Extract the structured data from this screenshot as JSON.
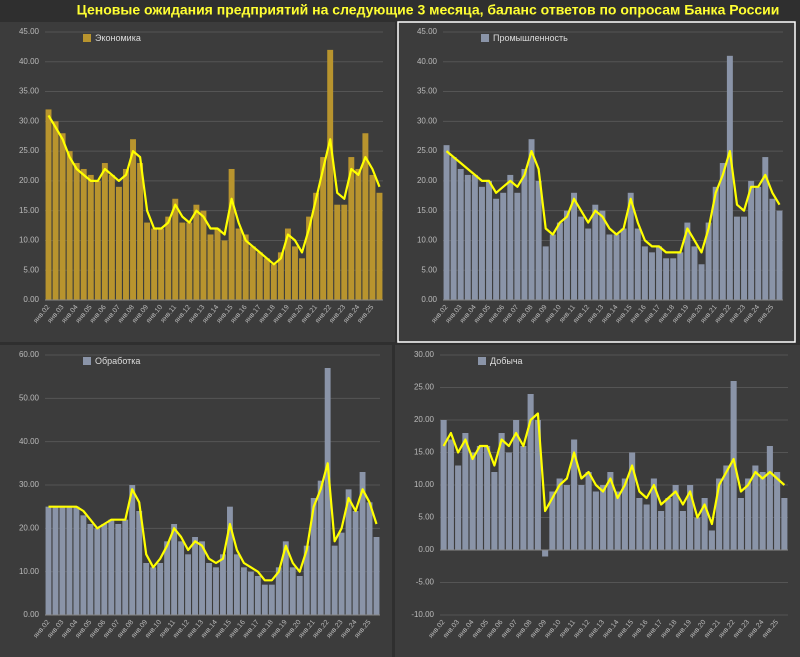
{
  "title": "Ценовые ожидания предприятий на следующие 3 месяца, баланс ответов по опросам Банка России",
  "chart_data": [
    {
      "type": "bar",
      "categories": [
        "янв.02",
        null,
        "янв.03",
        null,
        "янв.04",
        null,
        "янв.05",
        null,
        "янв.06",
        null,
        "янв.07",
        null,
        "янв.08",
        null,
        "янв.09",
        null,
        "янв.10",
        null,
        "янв.11",
        null,
        "янв.12",
        null,
        "янв.13",
        null,
        "янв.14",
        null,
        "янв.15",
        null,
        "янв.16",
        null,
        "янв.17",
        null,
        "янв.18",
        null,
        "янв.19",
        null,
        "янв.20",
        null,
        "янв.21",
        null,
        "янв.22",
        null,
        "янв.23",
        null,
        "янв.24",
        null,
        "янв.25",
        null
      ],
      "series": [
        {
          "name": "Экономика",
          "color": "#b8942e",
          "values": [
            32,
            30,
            28,
            25,
            23,
            22,
            21,
            20,
            23,
            21,
            19,
            22,
            27,
            23,
            13,
            12,
            12,
            14,
            17,
            13,
            13,
            16,
            15,
            11,
            12,
            10,
            22,
            12,
            11,
            9,
            8,
            7,
            6,
            8,
            12,
            9,
            7,
            14,
            18,
            24,
            42,
            16,
            16,
            24,
            22,
            28,
            21,
            18
          ]
        },
        {
          "type": "line",
          "color": "#ffff00",
          "values": [
            31,
            29,
            27,
            24,
            22,
            21,
            20,
            20,
            22,
            21,
            20,
            21,
            25,
            24,
            15,
            12,
            12,
            13,
            16,
            14,
            13,
            15,
            14,
            12,
            12,
            11,
            17,
            13,
            10,
            9,
            8,
            7,
            6,
            7,
            11,
            10,
            8,
            12,
            17,
            22,
            27,
            18,
            17,
            22,
            21,
            24,
            22,
            19
          ]
        }
      ],
      "ylim": [
        0,
        45
      ],
      "yticks": [
        {
          "value": 0,
          "label": "0.00"
        },
        {
          "value": 5,
          "label": "5.00"
        },
        {
          "value": 10,
          "label": "10.00"
        },
        {
          "value": 15,
          "label": "15.00"
        },
        {
          "value": 20,
          "label": "20.00"
        },
        {
          "value": 25,
          "label": "25.00"
        },
        {
          "value": 30,
          "label": "30.00"
        },
        {
          "value": 35,
          "label": "35.00"
        },
        {
          "value": 40,
          "label": "40.00"
        },
        {
          "value": 45,
          "label": "45.00"
        }
      ],
      "grid": true
    },
    {
      "type": "bar",
      "categories": [
        "янв.02",
        null,
        "янв.03",
        null,
        "янв.04",
        null,
        "янв.05",
        null,
        "янв.06",
        null,
        "янв.07",
        null,
        "янв.08",
        null,
        "янв.09",
        null,
        "янв.10",
        null,
        "янв.11",
        null,
        "янв.12",
        null,
        "янв.13",
        null,
        "янв.14",
        null,
        "янв.15",
        null,
        "янв.16",
        null,
        "янв.17",
        null,
        "янв.18",
        null,
        "янв.19",
        null,
        "янв.20",
        null,
        "янв.21",
        null,
        "янв.22",
        null,
        "янв.23",
        null,
        "янв.24",
        null,
        "янв.25",
        null
      ],
      "series": [
        {
          "name": "Промышленность",
          "color": "#8a94a8",
          "values": [
            26,
            24,
            22,
            21,
            21,
            19,
            20,
            17,
            18,
            21,
            18,
            22,
            27,
            20,
            9,
            11,
            13,
            15,
            18,
            14,
            12,
            16,
            15,
            11,
            11,
            12,
            18,
            12,
            9,
            8,
            9,
            7,
            7,
            8,
            13,
            9,
            6,
            13,
            19,
            23,
            41,
            14,
            14,
            20,
            19,
            24,
            17,
            15
          ]
        },
        {
          "type": "line",
          "color": "#ffff00",
          "values": [
            25,
            24,
            23,
            22,
            21,
            20,
            20,
            18,
            19,
            20,
            19,
            21,
            25,
            22,
            12,
            11,
            13,
            14,
            17,
            15,
            13,
            15,
            14,
            12,
            11,
            12,
            17,
            13,
            10,
            9,
            9,
            8,
            8,
            8,
            12,
            10,
            8,
            12,
            18,
            21,
            25,
            16,
            15,
            19,
            19,
            21,
            18,
            16
          ]
        }
      ],
      "ylim": [
        0,
        45
      ],
      "yticks": [
        {
          "value": 0,
          "label": "0.00"
        },
        {
          "value": 5,
          "label": "5.00"
        },
        {
          "value": 10,
          "label": "10.00"
        },
        {
          "value": 15,
          "label": "15.00"
        },
        {
          "value": 20,
          "label": "20.00"
        },
        {
          "value": 25,
          "label": "25.00"
        },
        {
          "value": 30,
          "label": "30.00"
        },
        {
          "value": 35,
          "label": "35.00"
        },
        {
          "value": 40,
          "label": "40.00"
        },
        {
          "value": 45,
          "label": "45.00"
        }
      ],
      "grid": true
    },
    {
      "type": "bar",
      "categories": [
        "янв.02",
        null,
        "янв.03",
        null,
        "янв.04",
        null,
        "янв.05",
        null,
        "янв.06",
        null,
        "янв.07",
        null,
        "янв.08",
        null,
        "янв.09",
        null,
        "янв.10",
        null,
        "янв.11",
        null,
        "янв.12",
        null,
        "янв.13",
        null,
        "янв.14",
        null,
        "янв.15",
        null,
        "янв.16",
        null,
        "янв.17",
        null,
        "янв.18",
        null,
        "янв.19",
        null,
        "янв.20",
        null,
        "янв.21",
        null,
        "янв.22",
        null,
        "янв.23",
        null,
        "янв.24",
        null,
        "янв.25",
        null
      ],
      "series": [
        {
          "name": "Обработка",
          "color": "#8a94a8",
          "values": [
            25,
            25,
            25,
            25,
            25,
            23,
            21,
            20,
            21,
            22,
            21,
            22,
            30,
            24,
            12,
            11,
            12,
            17,
            21,
            17,
            14,
            18,
            17,
            12,
            11,
            14,
            25,
            14,
            11,
            10,
            9,
            7,
            7,
            11,
            17,
            11,
            9,
            16,
            27,
            31,
            57,
            16,
            19,
            29,
            24,
            33,
            26,
            18
          ]
        },
        {
          "type": "line",
          "color": "#ffff00",
          "values": [
            25,
            25,
            25,
            25,
            25,
            24,
            22,
            20,
            21,
            22,
            22,
            22,
            29,
            26,
            14,
            11,
            13,
            16,
            20,
            18,
            15,
            17,
            16,
            13,
            12,
            13,
            21,
            15,
            12,
            11,
            10,
            8,
            8,
            10,
            16,
            12,
            10,
            15,
            25,
            29,
            35,
            17,
            20,
            27,
            24,
            29,
            26,
            21
          ]
        }
      ],
      "ylim": [
        0,
        60
      ],
      "yticks": [
        {
          "value": 0,
          "label": "0.00"
        },
        {
          "value": 10,
          "label": "10.00"
        },
        {
          "value": 20,
          "label": "20.00"
        },
        {
          "value": 30,
          "label": "30.00"
        },
        {
          "value": 40,
          "label": "40.00"
        },
        {
          "value": 50,
          "label": "50.00"
        },
        {
          "value": 60,
          "label": "60.00"
        }
      ],
      "grid": true
    },
    {
      "type": "bar",
      "categories": [
        "янв.02",
        null,
        "янв.03",
        null,
        "янв.04",
        null,
        "янв.05",
        null,
        "янв.06",
        null,
        "янв.07",
        null,
        "янв.08",
        null,
        "янв.09",
        null,
        "янв.10",
        null,
        "янв.11",
        null,
        "янв.12",
        null,
        "янв.13",
        null,
        "янв.14",
        null,
        "янв.15",
        null,
        "янв.16",
        null,
        "янв.17",
        null,
        "янв.18",
        null,
        "янв.19",
        null,
        "янв.20",
        null,
        "янв.21",
        null,
        "янв.22",
        null,
        "янв.23",
        null,
        "янв.24",
        null,
        "янв.25",
        null
      ],
      "series": [
        {
          "name": "Добыча",
          "color": "#8a94a8",
          "values": [
            20,
            17,
            13,
            18,
            15,
            16,
            16,
            12,
            18,
            15,
            20,
            16,
            24,
            20,
            -1,
            9,
            11,
            10,
            17,
            10,
            12,
            9,
            10,
            12,
            9,
            11,
            15,
            8,
            7,
            11,
            6,
            8,
            10,
            6,
            10,
            5,
            8,
            3,
            11,
            13,
            26,
            8,
            11,
            13,
            12,
            16,
            12,
            8
          ]
        },
        {
          "type": "line",
          "color": "#ffff00",
          "values": [
            16,
            18,
            15,
            17,
            14,
            16,
            16,
            13,
            17,
            16,
            18,
            16,
            20,
            21,
            6,
            8,
            10,
            11,
            15,
            11,
            12,
            10,
            9,
            11,
            8,
            10,
            13,
            9,
            8,
            10,
            7,
            8,
            9,
            7,
            9,
            5,
            7,
            4,
            10,
            12,
            14,
            9,
            10,
            12,
            11,
            12,
            11,
            10
          ]
        }
      ],
      "ylim": [
        -10,
        30
      ],
      "yticks": [
        {
          "value": -10,
          "label": "-10.00"
        },
        {
          "value": -5,
          "label": "-5.00"
        },
        {
          "value": 0,
          "label": "0.00"
        },
        {
          "value": 5,
          "label": "5.00"
        },
        {
          "value": 10,
          "label": "10.00"
        },
        {
          "value": 15,
          "label": "15.00"
        },
        {
          "value": 20,
          "label": "20.00"
        },
        {
          "value": 25,
          "label": "25.00"
        },
        {
          "value": 30,
          "label": "30.00"
        }
      ],
      "grid": true
    }
  ]
}
